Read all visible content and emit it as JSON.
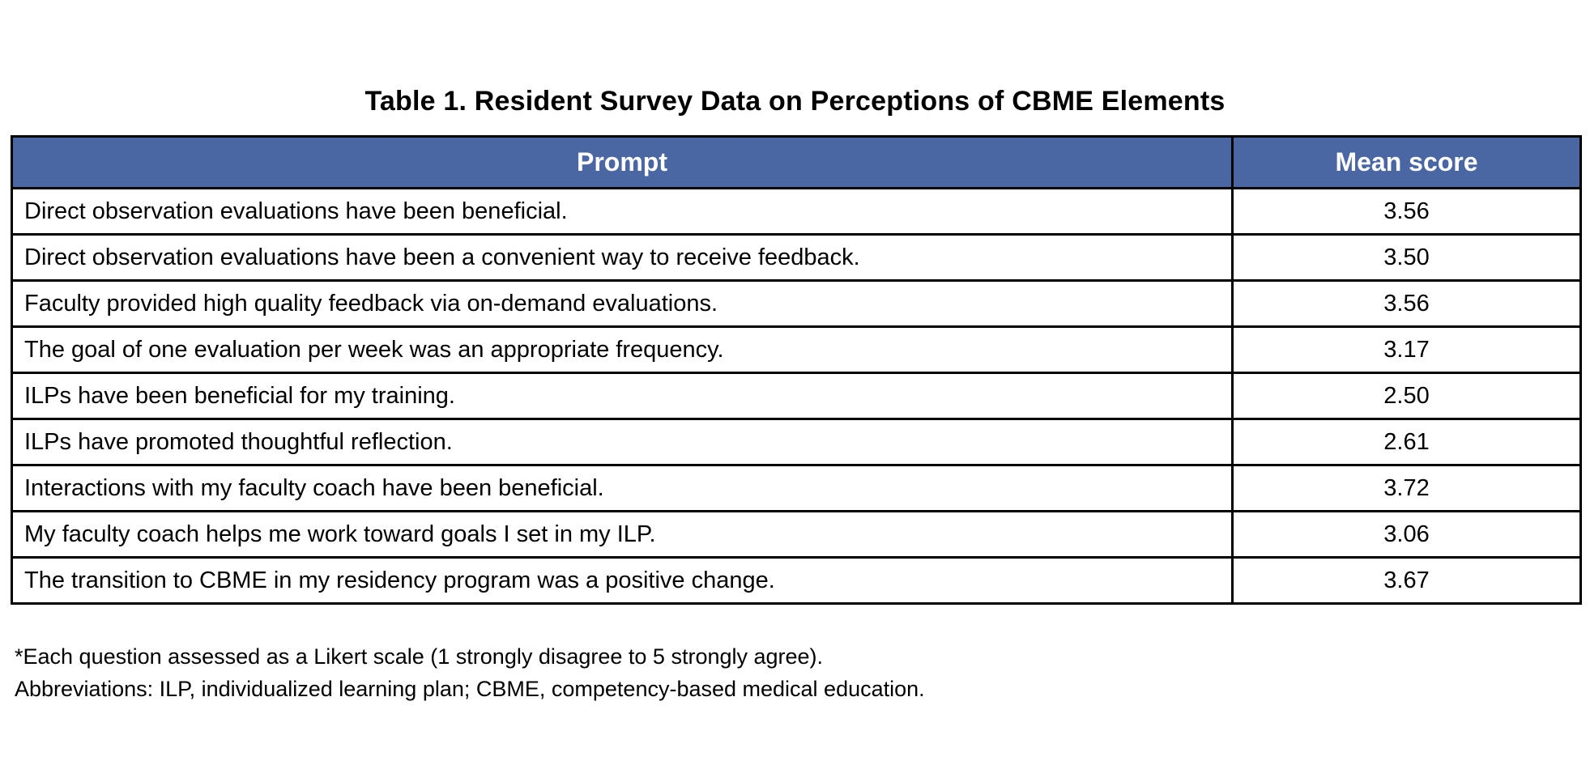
{
  "table": {
    "title": "Table 1. Resident Survey Data on Perceptions of CBME Elements",
    "columns": [
      "Prompt",
      "Mean score"
    ],
    "rows": [
      {
        "prompt": "Direct observation evaluations have been beneficial.",
        "score": "3.56"
      },
      {
        "prompt": "Direct observation evaluations have been a convenient way to receive feedback.",
        "score": "3.50"
      },
      {
        "prompt": "Faculty provided high quality feedback via on-demand evaluations.",
        "score": "3.56"
      },
      {
        "prompt": "The goal of one evaluation per week was an appropriate frequency.",
        "score": "3.17"
      },
      {
        "prompt": "ILPs have been beneficial for my training.",
        "score": "2.50"
      },
      {
        "prompt": "ILPs have promoted thoughtful reflection.",
        "score": "2.61"
      },
      {
        "prompt": "Interactions with my faculty coach have been beneficial.",
        "score": "3.72"
      },
      {
        "prompt": "My faculty coach helps me work toward goals I set in my ILP.",
        "score": "3.06"
      },
      {
        "prompt": "The transition to CBME in my residency program was a positive change.",
        "score": "3.67"
      }
    ]
  },
  "footnotes": [
    "*Each question assessed as a Likert scale (1 strongly disagree to 5 strongly agree).",
    "Abbreviations: ILP, individualized learning plan; CBME, competency-based medical education."
  ],
  "colors": {
    "header_bg": "#4A67A4",
    "header_text": "#FFFFFF",
    "border": "#000000",
    "body_text": "#000000",
    "page_bg": "#FFFFFF"
  },
  "chart_data": {
    "type": "table",
    "title": "Table 1. Resident Survey Data on Perceptions of CBME Elements",
    "columns": [
      "Prompt",
      "Mean score"
    ],
    "scale_note": "Likert scale, 1 strongly disagree to 5 strongly agree",
    "categories": [
      "Direct observation evaluations have been beneficial.",
      "Direct observation evaluations have been a convenient way to receive feedback.",
      "Faculty provided high quality feedback via on-demand evaluations.",
      "The goal of one evaluation per week was an appropriate frequency.",
      "ILPs have been beneficial for my training.",
      "ILPs have promoted thoughtful reflection.",
      "Interactions with my faculty coach have been beneficial.",
      "My faculty coach helps me work toward goals I set in my ILP.",
      "The transition to CBME in my residency program was a positive change."
    ],
    "values": [
      3.56,
      3.5,
      3.56,
      3.17,
      2.5,
      2.61,
      3.72,
      3.06,
      3.67
    ]
  }
}
